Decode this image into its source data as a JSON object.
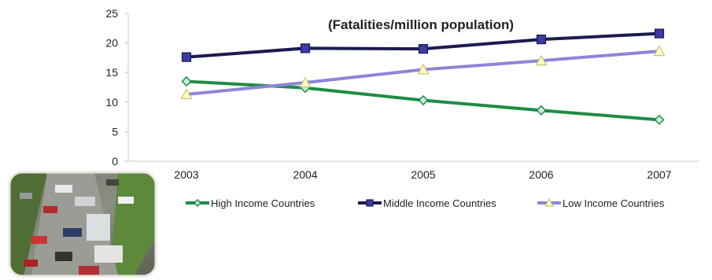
{
  "chart_data": {
    "type": "line",
    "subtitle": "(Fatalities/million population)",
    "categories": [
      "2003",
      "2004",
      "2005",
      "2006",
      "2007"
    ],
    "ylim": [
      0,
      25
    ],
    "yticks": [
      0,
      5,
      10,
      15,
      20,
      25
    ],
    "grid": false,
    "legend_position": "bottom",
    "series": [
      {
        "name": "High Income Countries",
        "values": [
          13.5,
          12.4,
          10.3,
          8.6,
          7.0
        ],
        "color": "#1e8c45",
        "marker": "diamond"
      },
      {
        "name": "Middle Income Countries",
        "values": [
          17.6,
          19.1,
          19.0,
          20.6,
          21.6
        ],
        "color": "#1c1c50",
        "marker": "square"
      },
      {
        "name": "Low Income Countries",
        "values": [
          11.3,
          13.3,
          15.5,
          17.0,
          18.6
        ],
        "color": "#8c85d8",
        "marker": "triangle"
      }
    ]
  },
  "photo": {
    "icon": "traffic-pileup-photo"
  }
}
